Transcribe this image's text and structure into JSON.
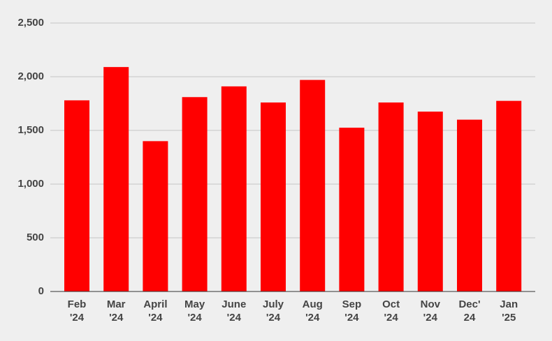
{
  "chart_data": {
    "type": "bar",
    "categories": [
      "Feb '24",
      "Mar '24",
      "April '24",
      "May '24",
      "June '24",
      "July '24",
      "Aug '24",
      "Sep '24",
      "Oct '24",
      "Nov '24",
      "Dec' 24",
      "Jan '25"
    ],
    "values": [
      1780,
      2090,
      1400,
      1810,
      1910,
      1760,
      1970,
      1525,
      1760,
      1675,
      1600,
      1775
    ],
    "color": "#ff0000",
    "ylim": [
      0,
      2500
    ],
    "yticks": [
      0,
      500,
      {
        "value": 1000,
        "label": "1,000"
      },
      {
        "value": 1500,
        "label": "1,500"
      },
      {
        "value": 2000,
        "label": "2,000"
      },
      {
        "value": 2500,
        "label": "2,500"
      }
    ],
    "grid": true
  }
}
